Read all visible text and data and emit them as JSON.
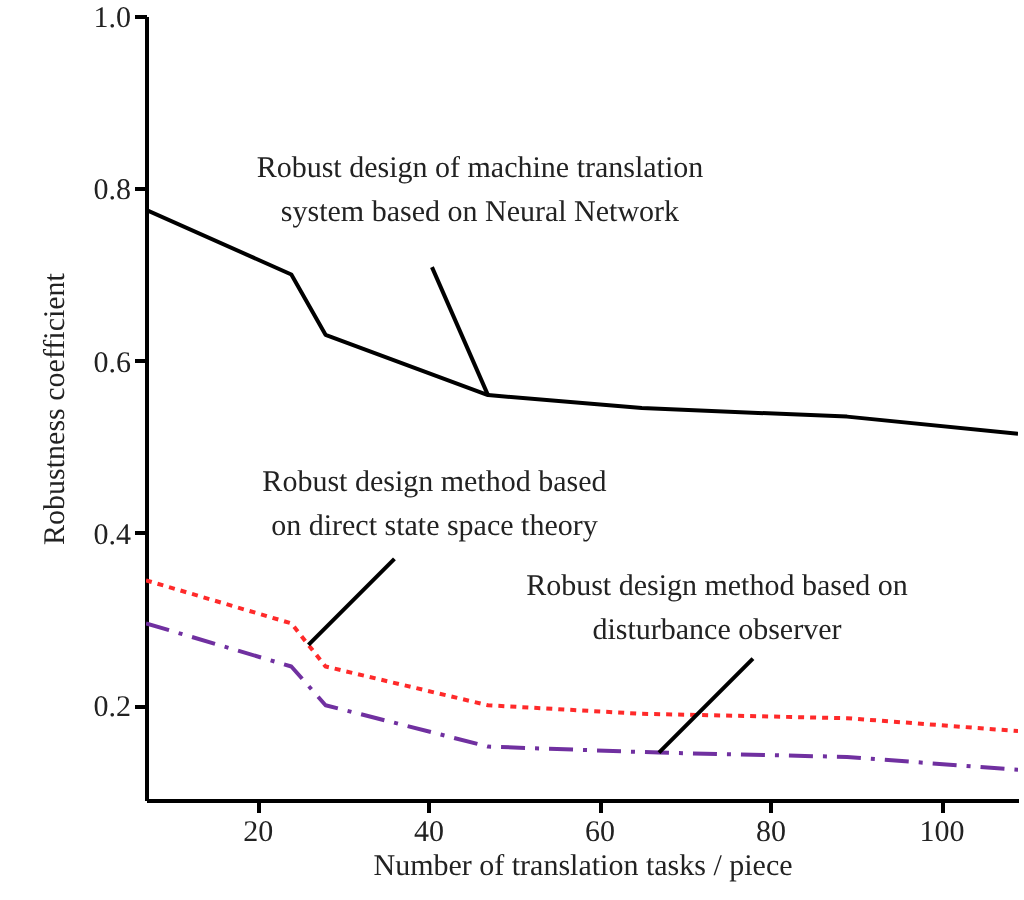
{
  "chart_data": {
    "type": "line",
    "xlabel": "Number of translation tasks / piece",
    "ylabel": "Robustness coefficient",
    "xlim": [
      7,
      109
    ],
    "ylim": [
      0.09,
      1.0
    ],
    "xticks": [
      20,
      40,
      60,
      80,
      100
    ],
    "yticks": [
      0.2,
      0.4,
      0.6,
      0.8,
      {
        "value": 1.0,
        "label": "1.0"
      }
    ],
    "grid": false,
    "marker": "none",
    "series": [
      {
        "color": "#000000",
        "line_style": "solid",
        "x": [
          7,
          24,
          28,
          47,
          65,
          89,
          109
        ],
        "values": [
          0.775,
          0.7,
          0.63,
          0.56,
          0.545,
          0.535,
          0.515
        ]
      },
      {
        "color": "#ff2a2a",
        "line_style": "dotted",
        "x": [
          7,
          24,
          28,
          47,
          65,
          89,
          109
        ],
        "values": [
          0.345,
          0.295,
          0.245,
          0.2,
          0.19,
          0.185,
          0.17
        ]
      },
      {
        "color": "#7030a0",
        "line_style": "dashed",
        "x": [
          7,
          24,
          28,
          47,
          67,
          89,
          109
        ],
        "values": [
          0.295,
          0.245,
          0.2,
          0.152,
          0.145,
          0.14,
          0.125
        ]
      }
    ],
    "annotations": [
      {
        "text": "Robust design of machine translation\nsystem based on Neural Network",
        "x": 47,
        "y": 0.56
      },
      {
        "text": "Robust design method based\non direct state space theory",
        "x": 26,
        "y": 0.27
      },
      {
        "text": "Robust design method based on\ndisturbance observer",
        "x": 67,
        "y": 0.145
      }
    ]
  }
}
